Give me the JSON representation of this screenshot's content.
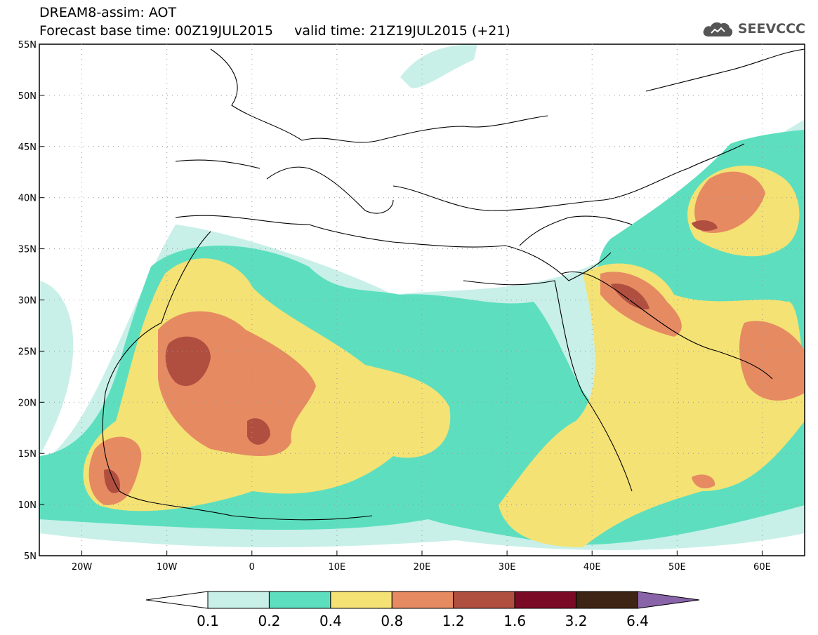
{
  "header": {
    "line1": "DREAM8-assim: AOT",
    "line2": "Forecast base time: 00Z19JUL2015     valid time: 21Z19JUL2015 (+21)",
    "logo_text": "SEEVCCC",
    "logo_icon": "cloud-icon"
  },
  "map": {
    "lon_range": [
      -25,
      65
    ],
    "lat_range": [
      5,
      55
    ],
    "lat_ticks": [
      {
        "value": 55,
        "label": "55N"
      },
      {
        "value": 50,
        "label": "50N"
      },
      {
        "value": 45,
        "label": "45N"
      },
      {
        "value": 40,
        "label": "40N"
      },
      {
        "value": 35,
        "label": "35N"
      },
      {
        "value": 30,
        "label": "30N"
      },
      {
        "value": 25,
        "label": "25N"
      },
      {
        "value": 20,
        "label": "20N"
      },
      {
        "value": 15,
        "label": "15N"
      },
      {
        "value": 10,
        "label": "10N"
      },
      {
        "value": 5,
        "label": "5N"
      }
    ],
    "lon_ticks": [
      {
        "value": -20,
        "label": "20W"
      },
      {
        "value": -10,
        "label": "10W"
      },
      {
        "value": 0,
        "label": "0"
      },
      {
        "value": 10,
        "label": "10E"
      },
      {
        "value": 20,
        "label": "20E"
      },
      {
        "value": 30,
        "label": "30E"
      },
      {
        "value": 40,
        "label": "40E"
      },
      {
        "value": 50,
        "label": "50E"
      },
      {
        "value": 60,
        "label": "60E"
      }
    ]
  },
  "colorbar": {
    "colors": [
      "#ffffff",
      "#c8f0e8",
      "#5ddfbf",
      "#f4e274",
      "#e68a62",
      "#b04f40",
      "#7a0a26",
      "#3d2415",
      "#8a64a8"
    ],
    "labels": [
      "0.1",
      "0.2",
      "0.4",
      "0.8",
      "1.2",
      "1.6",
      "3.2",
      "6.4"
    ]
  }
}
